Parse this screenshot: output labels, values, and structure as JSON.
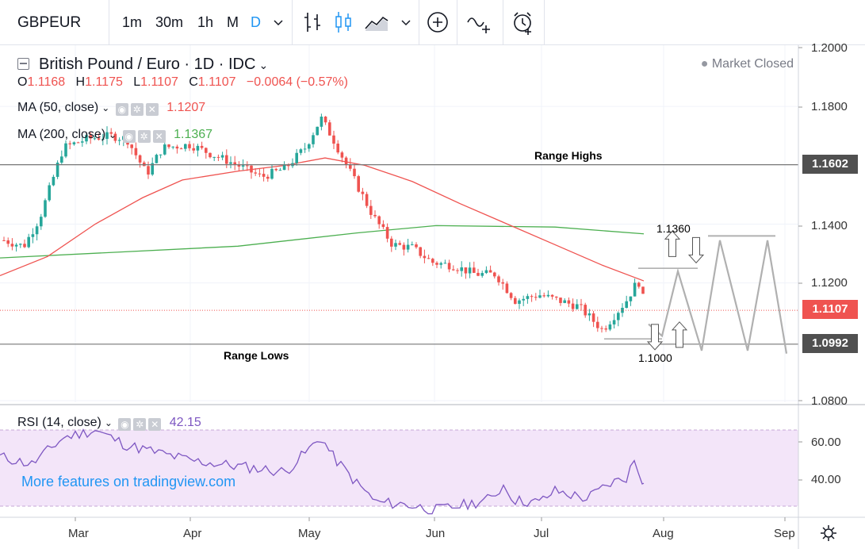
{
  "toolbar": {
    "symbol": "GBPEUR",
    "intervals": [
      "1m",
      "30m",
      "1h",
      "M",
      "D"
    ],
    "active_interval": "D",
    "icons": [
      "chevron-down-icon",
      "bar-style-icon",
      "candle-style-icon",
      "area-style-icon",
      "chevron-down-icon",
      "add-indicator-icon",
      "compare-icon",
      "alert-icon"
    ]
  },
  "header": {
    "title": "British Pound / Euro · 1D · IDC",
    "market_status": "Market Closed",
    "ohlc": {
      "o_label": "O",
      "o": "1.1168",
      "h_label": "H",
      "h": "1.1175",
      "l_label": "L",
      "l": "1.1107",
      "c_label": "C",
      "c": "1.1107",
      "change": "−0.0064 (−0.57%)"
    },
    "ma50": {
      "label": "MA (50, close)",
      "value": "1.1207"
    },
    "ma200": {
      "label": "MA (200, close)",
      "value": "1.1367"
    }
  },
  "rsi": {
    "label": "RSI (14, close)",
    "value": "42.15"
  },
  "watermark_link": "More features on tradingview.com",
  "colors": {
    "up": "#26a69a",
    "down": "#ef5350",
    "ma50": "#ef5350",
    "ma200": "#4caf50",
    "rsi_line": "#7e57c2",
    "rsi_band": "#f3e5f9",
    "price_tag": "#ef5350",
    "link": "#2196f3"
  },
  "annotations": {
    "range_highs": "Range Highs",
    "range_lows": "Range Lows",
    "level_high": "1.1360",
    "level_low": "1.1000"
  },
  "price_tags": {
    "high": "1.1602",
    "last": "1.1107",
    "low": "1.0992"
  },
  "chart_data": [
    {
      "type": "candlestick",
      "title": "British Pound / Euro · 1D · IDC",
      "x_ticks": [
        "Mar",
        "Apr",
        "May",
        "Jun",
        "Jul",
        "Aug",
        "Sep"
      ],
      "y_ticks": [
        "1.2000",
        "1.1800",
        "1.1602",
        "1.1400",
        "1.1200",
        "1.1107",
        "1.0992",
        "1.0800"
      ],
      "ylim": [
        1.079,
        1.2
      ],
      "horizontal_lines": [
        1.1602,
        1.0992
      ],
      "last_price": 1.1107,
      "ohlc_sample": [
        [
          1.1168,
          1.1175,
          1.1107,
          1.1107
        ]
      ],
      "series": [
        {
          "name": "MA (50, close)",
          "last": 1.1207
        },
        {
          "name": "MA (200, close)",
          "last": 1.1367
        }
      ],
      "annotations": [
        {
          "text": "Range Highs",
          "y": 1.1602
        },
        {
          "text": "Range Lows",
          "y": 1.0992
        },
        {
          "text": "1.1360",
          "y": 1.136
        },
        {
          "text": "1.1000",
          "y": 1.1
        }
      ]
    },
    {
      "type": "line",
      "title": "RSI (14, close)",
      "y_ticks": [
        "60.00",
        "40.00"
      ],
      "band": [
        30,
        70
      ],
      "last": 42.15
    }
  ]
}
